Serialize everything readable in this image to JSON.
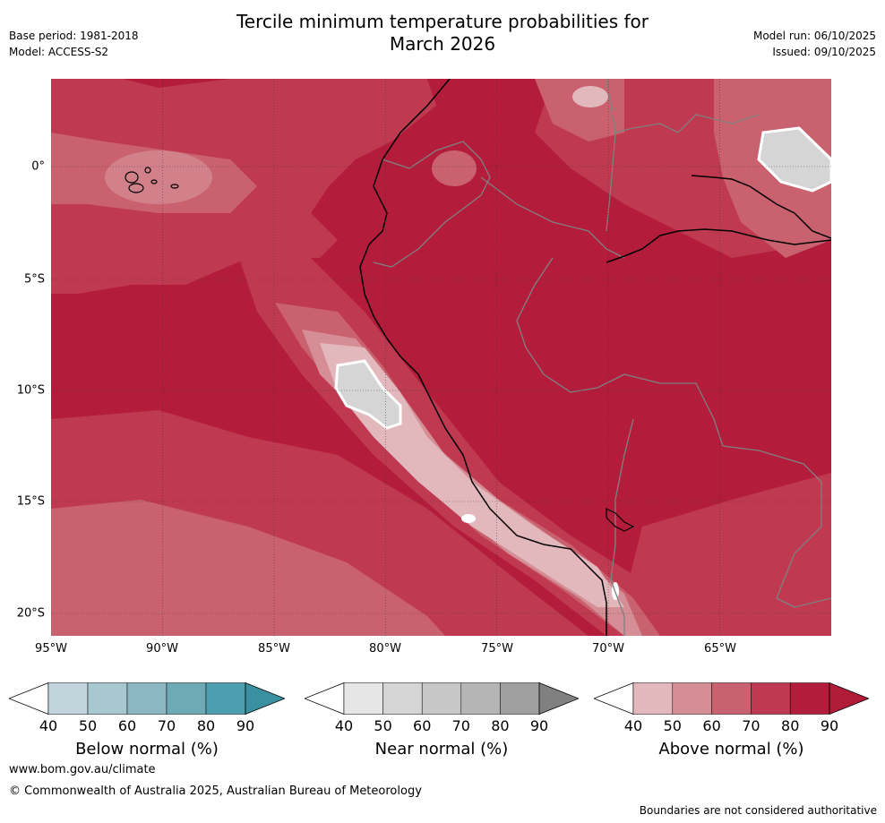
{
  "header": {
    "title_line1": "Tercile minimum temperature probabilities for",
    "title_line2": "March 2026",
    "base_period": "Base period: 1981-2018",
    "model": "Model: ACCESS-S2",
    "model_run": "Model run: 06/10/2025",
    "issued": "Issued: 09/10/2025"
  },
  "map": {
    "lon_labels": [
      "95°W",
      "90°W",
      "85°W",
      "80°W",
      "75°W",
      "70°W",
      "65°W"
    ],
    "lat_labels": [
      "0°",
      "5°S",
      "10°S",
      "15°S",
      "20°S"
    ],
    "colors": {
      "above_90": "#b31d3b",
      "above_80": "#bf3a50",
      "above_70": "#c9616e",
      "above_60": "#d58e96",
      "above_50": "#e2b8bd",
      "near_50": "#d5d5d5",
      "coast": "#000000",
      "border": "#808080",
      "grid": "#333333"
    }
  },
  "legends": [
    {
      "name": "below",
      "label": "Below normal (%)",
      "ticks": [
        "40",
        "50",
        "60",
        "70",
        "80",
        "90"
      ],
      "colors": [
        "#ffffff",
        "#c0d6dc",
        "#a7c8cf",
        "#8ab7c2",
        "#6eaab6",
        "#4b9fae",
        "#3a90a0"
      ]
    },
    {
      "name": "near",
      "label": "Near normal (%)",
      "ticks": [
        "40",
        "50",
        "60",
        "70",
        "80",
        "90"
      ],
      "colors": [
        "#ffffff",
        "#e6e6e6",
        "#d5d5d5",
        "#c7c7c7",
        "#b5b5b5",
        "#a0a0a0",
        "#808080"
      ]
    },
    {
      "name": "above",
      "label": "Above normal (%)",
      "ticks": [
        "40",
        "50",
        "60",
        "70",
        "80",
        "90"
      ],
      "colors": [
        "#ffffff",
        "#e2b8bd",
        "#d58e96",
        "#c9616e",
        "#bf3a50",
        "#b31d3b",
        "#b01b38"
      ]
    }
  ],
  "footer": {
    "website": "www.bom.gov.au/climate",
    "copyright": "© Commonwealth of Australia 2025, Australian Bureau of Meteorology",
    "note": "Boundaries are not considered authoritative"
  }
}
